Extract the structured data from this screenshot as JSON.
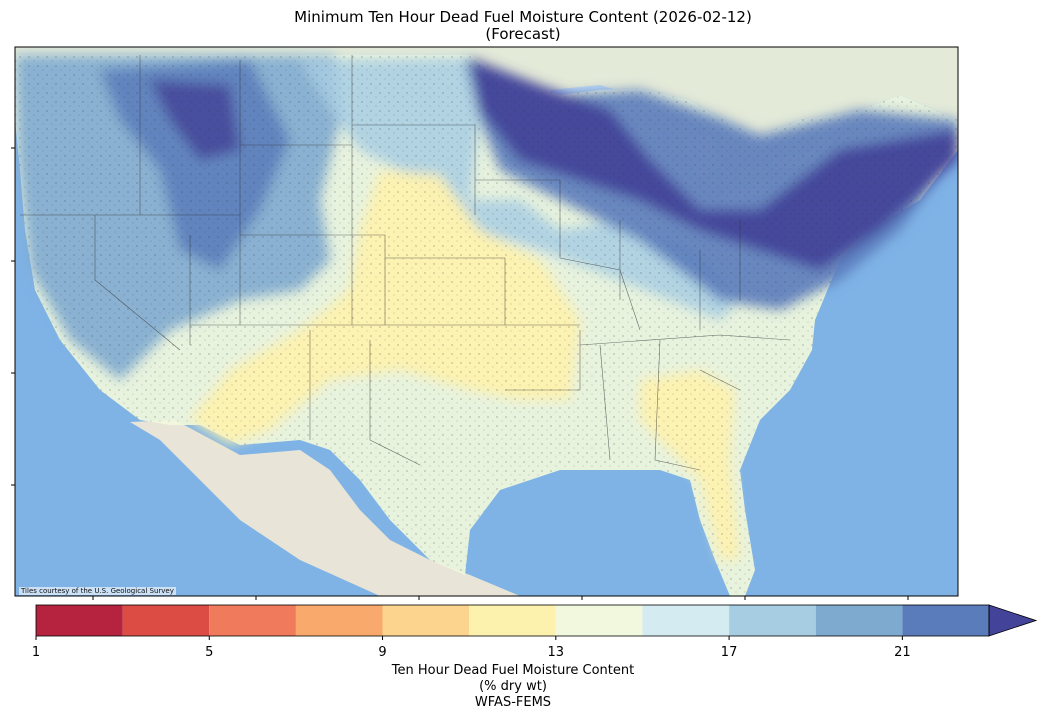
{
  "title": {
    "line1": "Minimum Ten Hour Dead Fuel Moisture Content (2026-02-12)",
    "line2": "(Forecast)"
  },
  "map": {
    "credit": "Tiles courtesy of the U.S. Geological Survey",
    "colors": {
      "land": "#dfe6cf",
      "mexico": "#e8e4d8",
      "canada": "#e4ead8",
      "ocean": "#7fb3e6",
      "lake": "#b8d6f2",
      "state_lines": "#333333"
    }
  },
  "colorbar": {
    "ticks": [
      1,
      5,
      9,
      13,
      17,
      21
    ],
    "min": 1,
    "max": 23,
    "bins": [
      {
        "from": 1,
        "to": 3,
        "color": "#b5233f"
      },
      {
        "from": 3,
        "to": 5,
        "color": "#dd4b45"
      },
      {
        "from": 5,
        "to": 7,
        "color": "#f07b5c"
      },
      {
        "from": 7,
        "to": 9,
        "color": "#f9a96b"
      },
      {
        "from": 9,
        "to": 11,
        "color": "#fdd48e"
      },
      {
        "from": 11,
        "to": 13,
        "color": "#fdf1ae"
      },
      {
        "from": 13,
        "to": 15,
        "color": "#f1f8dd"
      },
      {
        "from": 15,
        "to": 17,
        "color": "#d4ebf2"
      },
      {
        "from": 17,
        "to": 19,
        "color": "#a7cde3"
      },
      {
        "from": 19,
        "to": 21,
        "color": "#7faacf"
      },
      {
        "from": 21,
        "to": 23,
        "color": "#5b7cbb"
      }
    ],
    "extend_color": "#434399",
    "label_line1": "Ten Hour Dead Fuel Moisture Content",
    "label_line2": "(% dry wt)",
    "label_line3": "WFAS-FEMS"
  }
}
